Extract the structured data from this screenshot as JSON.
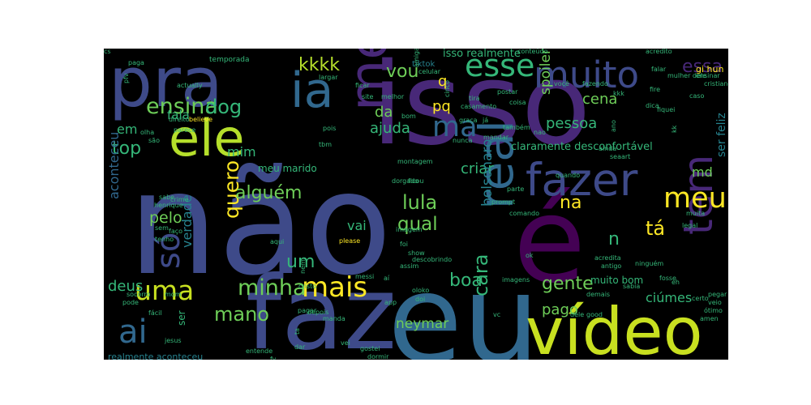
{
  "palette": {
    "background": "#000000",
    "purple": "#440154",
    "indigo": "#482878",
    "blue_violet": "#3e4a89",
    "steel_blue": "#31688e",
    "teal": "#26828e",
    "sea_green": "#1f9e89",
    "green": "#35b779",
    "lime": "#6ece58",
    "yellow_green": "#b5de2b",
    "yellow": "#fde725"
  },
  "words": [
    {
      "text": "não",
      "color": "#3e4a89"
    },
    {
      "text": "isso",
      "color": "#482878"
    },
    {
      "text": "faz",
      "color": "#3e4a89"
    },
    {
      "text": "eu",
      "color": "#31688e"
    },
    {
      "text": "é",
      "color": "#440154"
    },
    {
      "text": "pra",
      "color": "#3e4a89"
    },
    {
      "text": "vídeo",
      "color": "#c8e020"
    },
    {
      "text": "fazer",
      "color": "#3e4a89"
    },
    {
      "text": "ele",
      "color": "#b5de2b"
    },
    {
      "text": "mesmo",
      "color": "#482878"
    },
    {
      "text": "muito",
      "color": "#3e4a89"
    },
    {
      "text": "real",
      "color": "#31688e"
    },
    {
      "text": "ia",
      "color": "#31688e"
    },
    {
      "text": "uma",
      "color": "#c8e020"
    },
    {
      "text": "ai",
      "color": "#31688e"
    },
    {
      "text": "mais",
      "color": "#fde725"
    },
    {
      "text": "tem",
      "color": "#482878"
    },
    {
      "text": "meu",
      "color": "#fde725"
    },
    {
      "text": "esse",
      "color": "#35b779"
    },
    {
      "text": "ma",
      "color": "#31688e"
    },
    {
      "text": "só",
      "color": "#3e4a89"
    },
    {
      "text": "minha",
      "color": "#6ece58"
    },
    {
      "text": "mano",
      "color": "#6ece58"
    },
    {
      "text": "ensina",
      "color": "#6ece58"
    },
    {
      "text": "dog",
      "color": "#35b779"
    },
    {
      "text": "kkkk",
      "color": "#b5de2b"
    },
    {
      "text": "quero",
      "color": "#fde725"
    },
    {
      "text": "alguém",
      "color": "#6ece58"
    },
    {
      "text": "lula",
      "color": "#6ece58"
    },
    {
      "text": "gente",
      "color": "#6ece58"
    },
    {
      "text": "qual",
      "color": "#6ece58"
    },
    {
      "text": "vou",
      "color": "#6ece58"
    },
    {
      "text": "essa",
      "color": "#482878"
    },
    {
      "text": "top",
      "color": "#35b779"
    },
    {
      "text": "na",
      "color": "#fde725"
    },
    {
      "text": "tá",
      "color": "#fde725"
    },
    {
      "text": "cena",
      "color": "#6ece58"
    },
    {
      "text": "pessoa",
      "color": "#35b779"
    },
    {
      "text": "ajuda",
      "color": "#35b779"
    },
    {
      "text": "criar",
      "color": "#35b779"
    },
    {
      "text": "neymar",
      "color": "#6ece58"
    },
    {
      "text": "bolsonaro",
      "color": "#26828e"
    },
    {
      "text": "cara",
      "color": "#35b779"
    },
    {
      "text": "boa",
      "color": "#35b779"
    },
    {
      "text": "aconteceu",
      "color": "#31688e"
    },
    {
      "text": "pelo",
      "color": "#6ece58"
    },
    {
      "text": "verdade",
      "color": "#26828e"
    },
    {
      "text": "deus",
      "color": "#35b779"
    },
    {
      "text": "pago",
      "color": "#6ece58"
    },
    {
      "text": "ciúmes",
      "color": "#35b779"
    },
    {
      "text": "vai",
      "color": "#35b779"
    },
    {
      "text": "um",
      "color": "#35b779"
    },
    {
      "text": "pq",
      "color": "#fde725"
    },
    {
      "text": "da",
      "color": "#6ece58"
    },
    {
      "text": "em",
      "color": "#35b779"
    },
    {
      "text": "fala",
      "color": "#35b779"
    },
    {
      "text": "mim",
      "color": "#35b779"
    },
    {
      "text": "md",
      "color": "#6ece58"
    },
    {
      "text": "spoiler",
      "color": "#6ece58"
    },
    {
      "text": "ser feliz",
      "color": "#26828e"
    },
    {
      "text": "q",
      "color": "#fde725"
    },
    {
      "text": "n",
      "color": "#35b779"
    },
    {
      "text": "isso realmente",
      "color": "#35b779"
    },
    {
      "text": "claramente desconfortável",
      "color": "#35b779"
    },
    {
      "text": "meu marido",
      "color": "#35b779"
    },
    {
      "text": "muito bom",
      "color": "#35b779"
    },
    {
      "text": "realmente aconteceu",
      "color": "#26828e"
    },
    {
      "text": "ser",
      "color": "#35b779"
    },
    {
      "text": "tiktok",
      "color": "#26828e"
    },
    {
      "text": "temporada",
      "color": "#35b779"
    },
    {
      "text": "conteúdo",
      "color": "#35b779"
    },
    {
      "text": "acredito",
      "color": "#35b779"
    },
    {
      "text": "gi hun",
      "color": "#fde725"
    },
    {
      "text": "ensinar",
      "color": "#35b779"
    },
    {
      "text": "cristiano",
      "color": "#35b779"
    },
    {
      "text": "celular",
      "color": "#35b779"
    },
    {
      "text": "largar",
      "color": "#35b779"
    },
    {
      "text": "ficar",
      "color": "#35b779"
    },
    {
      "text": "postar",
      "color": "#35b779"
    },
    {
      "text": "coisa",
      "color": "#35b779"
    },
    {
      "text": "site",
      "color": "#35b779"
    },
    {
      "text": "melhor",
      "color": "#35b779"
    },
    {
      "text": "direito",
      "color": "#35b779"
    },
    {
      "text": "believe",
      "color": "#fde725"
    },
    {
      "text": "parece",
      "color": "#35b779"
    },
    {
      "text": "actually",
      "color": "#35b779"
    },
    {
      "text": "paga",
      "color": "#35b779"
    },
    {
      "text": "pfv",
      "color": "#35b779"
    },
    {
      "text": "bom",
      "color": "#35b779"
    },
    {
      "text": "graça",
      "color": "#35b779"
    },
    {
      "text": "já",
      "color": "#35b779"
    },
    {
      "text": "também",
      "color": "#35b779"
    },
    {
      "text": "mandar",
      "color": "#35b779"
    },
    {
      "text": "fire",
      "color": "#35b779"
    },
    {
      "text": "falar",
      "color": "#35b779"
    },
    {
      "text": "kkk",
      "color": "#35b779"
    },
    {
      "text": "dica",
      "color": "#35b779"
    },
    {
      "text": "fiquei",
      "color": "#35b779"
    },
    {
      "text": "caso",
      "color": "#35b779"
    },
    {
      "text": "seaart",
      "color": "#35b779"
    },
    {
      "text": "olha",
      "color": "#35b779"
    },
    {
      "text": "são",
      "color": "#35b779"
    },
    {
      "text": "quando",
      "color": "#35b779"
    },
    {
      "text": "montagem",
      "color": "#35b779"
    },
    {
      "text": "ficou",
      "color": "#35b779"
    },
    {
      "text": "parte",
      "color": "#35b779"
    },
    {
      "text": "prompt",
      "color": "#35b779"
    },
    {
      "text": "comando",
      "color": "#35b779"
    },
    {
      "text": "muita",
      "color": "#35b779"
    },
    {
      "text": "legal",
      "color": "#35b779"
    },
    {
      "text": "crime",
      "color": "#35b779"
    },
    {
      "text": "sabe",
      "color": "#35b779"
    },
    {
      "text": "henrique",
      "color": "#35b779"
    },
    {
      "text": "sem",
      "color": "#35b779"
    },
    {
      "text": "faço",
      "color": "#35b779"
    },
    {
      "text": "tenho",
      "color": "#35b779"
    },
    {
      "text": "aqui",
      "color": "#35b779"
    },
    {
      "text": "nem",
      "color": "#35b779"
    },
    {
      "text": "please",
      "color": "#fde725"
    },
    {
      "text": "dorgado",
      "color": "#35b779"
    },
    {
      "text": "imagem",
      "color": "#35b779"
    },
    {
      "text": "foi",
      "color": "#35b779"
    },
    {
      "text": "show",
      "color": "#35b779"
    },
    {
      "text": "assim",
      "color": "#35b779"
    },
    {
      "text": "descobrindo",
      "color": "#35b779"
    },
    {
      "text": "messi",
      "color": "#35b779"
    },
    {
      "text": "ok",
      "color": "#35b779"
    },
    {
      "text": "acredita",
      "color": "#35b779"
    },
    {
      "text": "antigo",
      "color": "#35b779"
    },
    {
      "text": "ninguém",
      "color": "#35b779"
    },
    {
      "text": "aí",
      "color": "#35b779"
    },
    {
      "text": "imagens",
      "color": "#35b779"
    },
    {
      "text": "app",
      "color": "#35b779"
    },
    {
      "text": "oloko",
      "color": "#35b779"
    },
    {
      "text": "cristo",
      "color": "#35b779"
    },
    {
      "text": "doi",
      "color": "#35b779"
    },
    {
      "text": "fosse",
      "color": "#35b779"
    },
    {
      "text": "demais",
      "color": "#35b779"
    },
    {
      "text": "dele",
      "color": "#35b779"
    },
    {
      "text": "good",
      "color": "#35b779"
    },
    {
      "text": "socorro",
      "color": "#35b779"
    },
    {
      "text": "pode",
      "color": "#35b779"
    },
    {
      "text": "pagar",
      "color": "#35b779"
    },
    {
      "text": "depois",
      "color": "#35b779"
    },
    {
      "text": "vc",
      "color": "#35b779"
    },
    {
      "text": "mom",
      "color": "#35b779"
    },
    {
      "text": "fácil",
      "color": "#35b779"
    },
    {
      "text": "jesus",
      "color": "#35b779"
    },
    {
      "text": "ta",
      "color": "#35b779"
    },
    {
      "text": "fy",
      "color": "#35b779"
    },
    {
      "text": "dar",
      "color": "#35b779"
    },
    {
      "text": "manda",
      "color": "#35b779"
    },
    {
      "text": "vei",
      "color": "#35b779"
    },
    {
      "text": "gostei",
      "color": "#35b779"
    },
    {
      "text": "dormir",
      "color": "#35b779"
    },
    {
      "text": "entende",
      "color": "#35b779"
    },
    {
      "text": "amiga",
      "color": "#35b779"
    },
    {
      "text": "você",
      "color": "#35b779"
    },
    {
      "text": "mulher dele",
      "color": "#35b779"
    },
    {
      "text": "fazendo",
      "color": "#35b779"
    },
    {
      "text": "ano",
      "color": "#35b779"
    },
    {
      "text": "cinco",
      "color": "#35b779"
    },
    {
      "text": "tira",
      "color": "#35b779"
    },
    {
      "text": "casamento",
      "color": "#35b779"
    },
    {
      "text": "nunca",
      "color": "#35b779"
    },
    {
      "text": "pois",
      "color": "#35b779"
    },
    {
      "text": "nao",
      "color": "#35b779"
    },
    {
      "text": "ainda",
      "color": "#35b779"
    },
    {
      "text": "tbm",
      "color": "#35b779"
    },
    {
      "text": "kk",
      "color": "#35b779"
    },
    {
      "text": "sabia",
      "color": "#35b779"
    },
    {
      "text": "eh",
      "color": "#35b779"
    },
    {
      "text": "certo",
      "color": "#35b779"
    },
    {
      "text": "veio",
      "color": "#35b779"
    },
    {
      "text": "amen",
      "color": "#35b779"
    },
    {
      "text": "pegar",
      "color": "#35b779"
    },
    {
      "text": "ótimo",
      "color": "#35b779"
    },
    {
      "text": "cs",
      "color": "#35b779"
    }
  ]
}
